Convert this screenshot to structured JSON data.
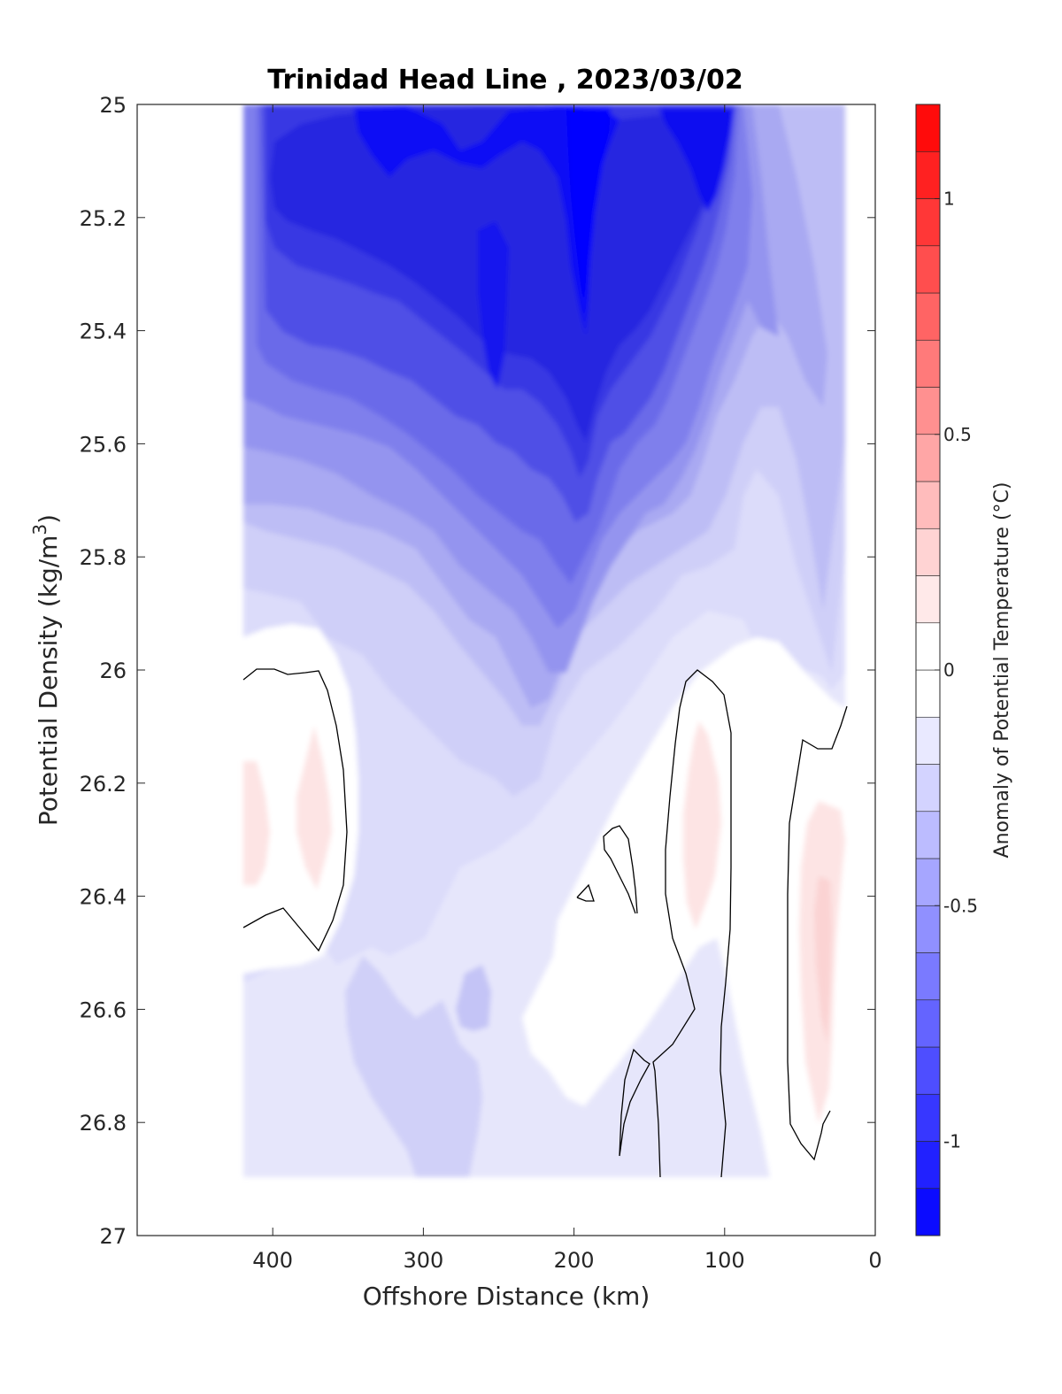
{
  "chart_data": {
    "type": "heatmap",
    "subtype": "filled-contour",
    "title": "Trinidad Head Line , 2023/03/02",
    "xlabel": "Offshore Distance (km)",
    "ylabel": "Potential Density (kg/m",
    "ylabel_sup": "3",
    "ylabel_end": ")",
    "xlim": [
      490,
      0
    ],
    "ylim": [
      25,
      27
    ],
    "x_reversed": true,
    "y_reversed": true,
    "xticks": [
      400,
      300,
      200,
      100,
      0
    ],
    "xtick_labels": [
      "400",
      "300",
      "200",
      "100",
      "0"
    ],
    "yticks": [
      25,
      25.2,
      25.4,
      25.6,
      25.8,
      26,
      26.2,
      26.4,
      26.6,
      26.8,
      27
    ],
    "ytick_labels": [
      "25",
      "25.2",
      "25.4",
      "25.6",
      "25.8",
      "26",
      "26.2",
      "26.4",
      "26.6",
      "26.8",
      "27"
    ],
    "data_extent": {
      "x": [
        420,
        20
      ],
      "y": [
        25,
        26.9
      ]
    },
    "colorbar": {
      "label": "Anomaly of Potential Temperature (°C)",
      "range": [
        -1.2,
        1.2
      ],
      "levels": 24,
      "ticks": [
        1,
        0.5,
        0,
        -0.5,
        -1
      ],
      "tick_labels": [
        "1",
        "0.5",
        "0",
        "-0.5",
        "-1"
      ],
      "colormap": "blue-white-red",
      "color_negative": "#0000ff",
      "color_positive": "#ff0000",
      "color_zero": "#ffffff"
    },
    "zero_contour_color": "#000000",
    "regions": [
      {
        "name": "upper-offshore-cold-core",
        "x": [
          420,
          230
        ],
        "y": [
          25.0,
          25.8
        ],
        "value": -0.85
      },
      {
        "name": "coldest-core-200km",
        "x": [
          210,
          180
        ],
        "y": [
          25.0,
          25.75
        ],
        "value": -1.05
      },
      {
        "name": "cold-core-110km",
        "x": [
          130,
          90
        ],
        "y": [
          25.0,
          25.3
        ],
        "value": -1.0
      },
      {
        "name": "nearshore-upper-weak-anomaly",
        "x": [
          80,
          20
        ],
        "y": [
          25.0,
          26.0
        ],
        "value": -0.3
      },
      {
        "name": "deep-offshore-weak-anomaly",
        "x": [
          420,
          220
        ],
        "y": [
          26.4,
          26.9
        ],
        "value": -0.2
      },
      {
        "name": "warm-patch-400km",
        "x": [
          420,
          360
        ],
        "y": [
          26.1,
          26.5
        ],
        "value": 0.1
      },
      {
        "name": "warm-patch-110km",
        "x": [
          135,
          100
        ],
        "y": [
          26.1,
          26.5
        ],
        "value": 0.1
      },
      {
        "name": "warm-patch-30km",
        "x": [
          50,
          20
        ],
        "y": [
          26.25,
          26.8
        ],
        "value": 0.15
      }
    ]
  }
}
